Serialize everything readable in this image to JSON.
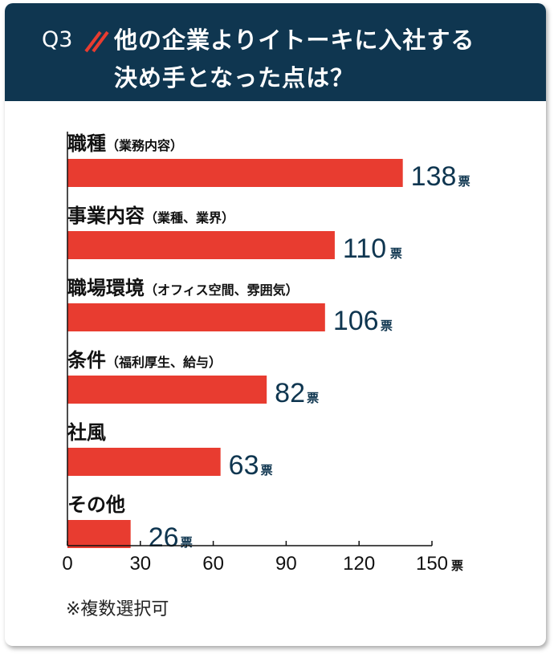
{
  "header": {
    "q_label": "Q3",
    "title_line1": "他の企業よりイトーキに入社する",
    "title_line2": "決め手となった点は？"
  },
  "footnote": "※複数選択可",
  "colors": {
    "header_bg": "#0f3650",
    "bar": "#e83c30",
    "value_text": "#0f3650",
    "accent": "#e83c30"
  },
  "chart_data": {
    "type": "bar",
    "orientation": "horizontal",
    "categories": [
      {
        "main": "職種",
        "sub": "（業務内容）"
      },
      {
        "main": "事業内容",
        "sub": "（業種、業界）"
      },
      {
        "main": "職場環境",
        "sub": "（オフィス空間、雰囲気）"
      },
      {
        "main": "条件",
        "sub": "（福利厚生、給与）"
      },
      {
        "main": "社風",
        "sub": ""
      },
      {
        "main": "その他",
        "sub": ""
      }
    ],
    "values": [
      138,
      110,
      106,
      82,
      63,
      26
    ],
    "value_unit": "票",
    "xlim": [
      0,
      150
    ],
    "xticks": [
      "0",
      "30",
      "60",
      "90",
      "120",
      "150"
    ],
    "xtick_unit": "票",
    "grid": false
  }
}
